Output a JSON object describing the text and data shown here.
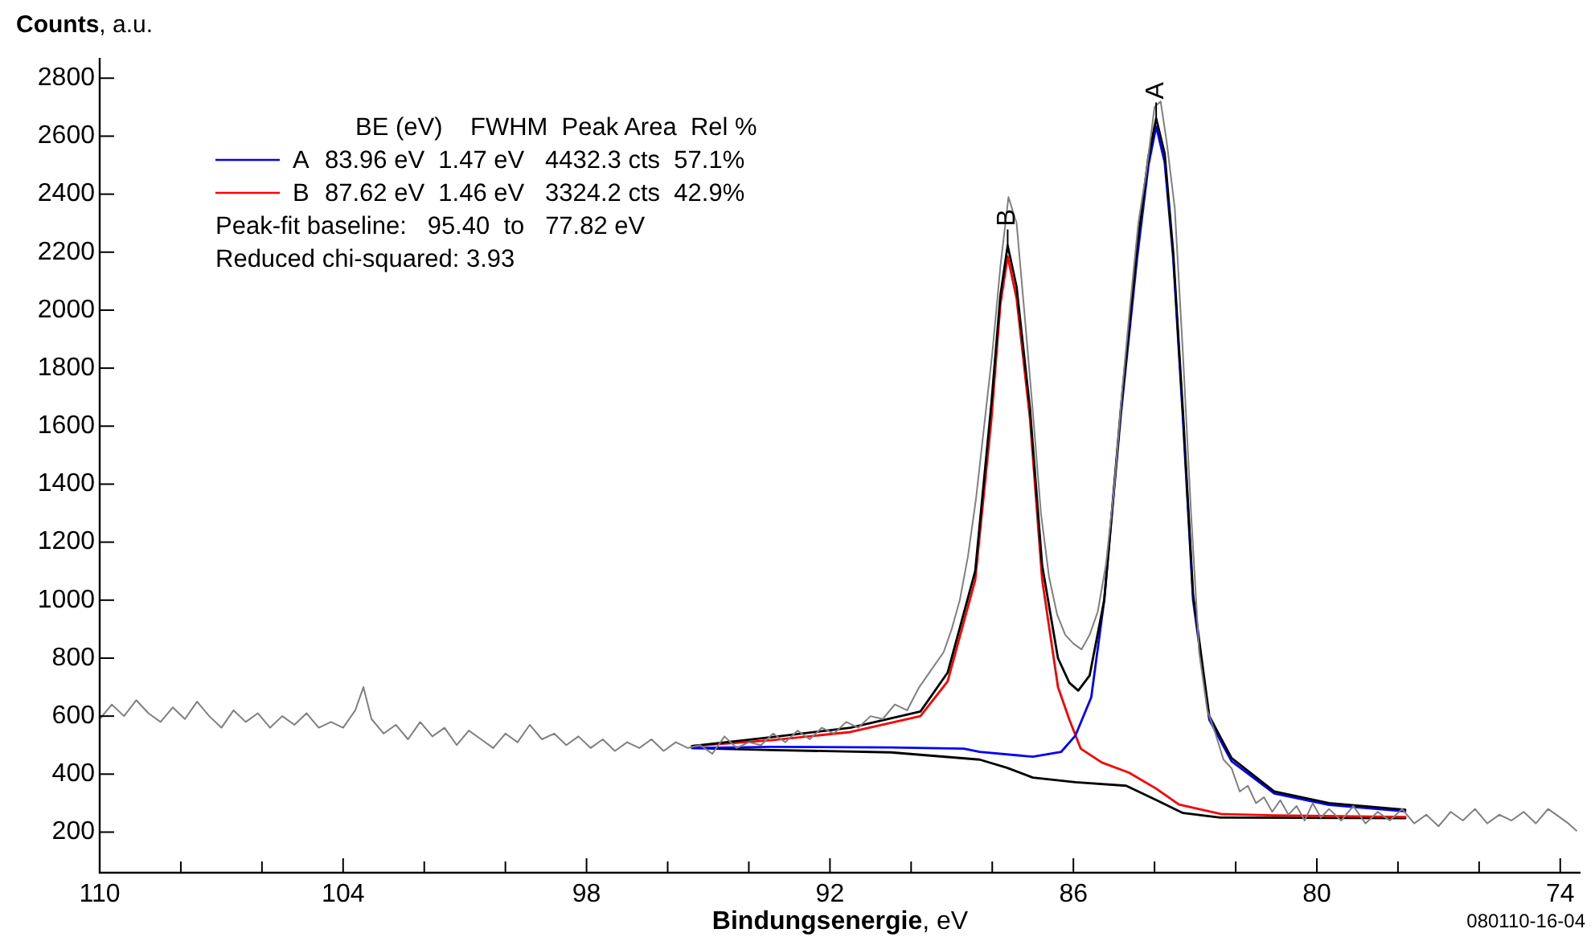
{
  "chart_data": {
    "type": "line",
    "ylabel": "Counts, a.u.",
    "xlabel": "Bindungsenergie, eV",
    "xlim": [
      110,
      73.5
    ],
    "xticks": [
      110,
      {
        "value": 108,
        "label": null
      },
      {
        "value": 106,
        "label": null
      },
      104,
      {
        "value": 102,
        "label": null
      },
      {
        "value": 100,
        "label": null
      },
      98,
      {
        "value": 96,
        "label": null
      },
      {
        "value": 94,
        "label": null
      },
      92,
      {
        "value": 90,
        "label": null
      },
      {
        "value": 88,
        "label": null
      },
      86,
      {
        "value": 84,
        "label": null
      },
      {
        "value": 82,
        "label": null
      },
      80,
      {
        "value": 78,
        "label": null
      },
      {
        "value": 76,
        "label": null
      },
      74
    ],
    "ylim": [
      60,
      2870
    ],
    "yticks": [
      200,
      400,
      600,
      800,
      1000,
      1200,
      1400,
      1600,
      1800,
      2000,
      2200,
      2400,
      2600,
      2800
    ],
    "legend": "top left",
    "marker": "none",
    "line_style": "solid",
    "series": [
      {
        "color": "#808080",
        "x": [
          110,
          109.7,
          109.4,
          109.1,
          108.8,
          108.5,
          108.2,
          107.9,
          107.6,
          107.3,
          107.0,
          106.7,
          106.4,
          106.1,
          105.8,
          105.5,
          105.2,
          104.9,
          104.6,
          104.3,
          104.0,
          103.7,
          103.5,
          103.3,
          103.0,
          102.7,
          102.4,
          102.1,
          101.8,
          101.5,
          101.2,
          100.9,
          100.6,
          100.3,
          100.0,
          99.7,
          99.4,
          99.1,
          98.8,
          98.5,
          98.2,
          97.9,
          97.6,
          97.3,
          97.0,
          96.7,
          96.4,
          96.1,
          95.8,
          95.5,
          95.2,
          94.9,
          94.6,
          94.3,
          94.0,
          93.7,
          93.4,
          93.1,
          92.8,
          92.5,
          92.2,
          91.9,
          91.6,
          91.3,
          91.0,
          90.7,
          90.4,
          90.1,
          89.8,
          89.5,
          89.2,
          89.0,
          88.8,
          88.6,
          88.4,
          88.2,
          88.0,
          87.8,
          87.6,
          87.4,
          87.2,
          87.0,
          86.8,
          86.6,
          86.4,
          86.2,
          86.0,
          85.8,
          85.6,
          85.4,
          85.2,
          85.0,
          84.8,
          84.6,
          84.4,
          84.2,
          84.0,
          83.85,
          83.7,
          83.5,
          83.3,
          83.1,
          82.9,
          82.7,
          82.5,
          82.3,
          82.1,
          81.9,
          81.7,
          81.5,
          81.3,
          81.1,
          80.9,
          80.7,
          80.5,
          80.3,
          80.1,
          79.9,
          79.7,
          79.4,
          79.1,
          78.8,
          78.5,
          78.2,
          77.9,
          77.6,
          77.3,
          77.0,
          76.7,
          76.4,
          76.1,
          75.8,
          75.5,
          75.2,
          74.9,
          74.6,
          74.3,
          74.0,
          73.8,
          73.6
        ],
        "values": [
          590,
          640,
          600,
          655,
          610,
          580,
          630,
          590,
          650,
          600,
          560,
          620,
          580,
          610,
          560,
          600,
          570,
          610,
          560,
          580,
          560,
          620,
          700,
          590,
          540,
          570,
          520,
          580,
          530,
          560,
          500,
          550,
          520,
          490,
          540,
          510,
          570,
          520,
          540,
          500,
          530,
          490,
          520,
          480,
          510,
          490,
          520,
          480,
          510,
          490,
          500,
          470,
          530,
          490,
          510,
          500,
          540,
          510,
          550,
          520,
          560,
          540,
          580,
          560,
          600,
          590,
          640,
          620,
          700,
          760,
          820,
          900,
          1000,
          1150,
          1350,
          1600,
          1850,
          2150,
          2390,
          2300,
          1980,
          1650,
          1300,
          1080,
          950,
          880,
          850,
          830,
          880,
          960,
          1120,
          1380,
          1720,
          2020,
          2300,
          2480,
          2700,
          2720,
          2580,
          2350,
          1850,
          1300,
          820,
          620,
          540,
          450,
          420,
          340,
          360,
          300,
          320,
          270,
          310,
          260,
          290,
          240,
          300,
          250,
          280,
          240,
          290,
          230,
          270,
          240,
          280,
          230,
          260,
          220,
          270,
          240,
          280,
          230,
          260,
          240,
          270,
          230,
          280,
          250,
          230,
          205
        ]
      },
      {
        "color": "#000000",
        "x": [
          95.4,
          93.45,
          91.5,
          89.77,
          89.1,
          88.42,
          88.02,
          87.8,
          87.62,
          87.4,
          87.07,
          86.77,
          86.38,
          86.1,
          85.88,
          85.6,
          85.24,
          84.83,
          84.43,
          84.15,
          83.96,
          83.75,
          83.54,
          83.3,
          83.05,
          82.65,
          82.1,
          81.05,
          79.7,
          77.82
        ],
        "values": [
          497,
          527,
          560,
          616,
          750,
          1100,
          1680,
          2050,
          2223,
          2080,
          1660,
          1120,
          800,
          715,
          688,
          740,
          1000,
          1660,
          2220,
          2530,
          2661,
          2540,
          2200,
          1650,
          1020,
          600,
          455,
          340,
          300,
          277
        ]
      },
      {
        "name": "A",
        "color": "#0000ff",
        "x": [
          95.4,
          93.45,
          90.5,
          88.7,
          88.31,
          87.0,
          86.3,
          85.95,
          85.56,
          85.24,
          84.83,
          84.43,
          84.15,
          83.96,
          83.75,
          83.54,
          83.3,
          83.05,
          82.65,
          82.1,
          81.05,
          79.7,
          77.82
        ],
        "values": [
          490,
          494,
          492,
          488,
          477,
          460,
          477,
          533,
          665,
          1000,
          1640,
          2180,
          2500,
          2633,
          2510,
          2180,
          1625,
          1000,
          588,
          444,
          333,
          294,
          272
        ]
      },
      {
        "name": "B",
        "color": "#ff0000",
        "x": [
          95.4,
          93.45,
          91.5,
          89.77,
          89.1,
          88.42,
          88.02,
          87.8,
          87.62,
          87.4,
          87.07,
          86.77,
          86.38,
          86.1,
          85.82,
          85.3,
          84.63,
          83.96,
          83.4,
          82.35,
          81.05,
          77.82
        ],
        "values": [
          497,
          517,
          545,
          600,
          720,
          1070,
          1625,
          2020,
          2185,
          2040,
          1625,
          1070,
          700,
          588,
          488,
          440,
          405,
          350,
          295,
          262,
          258,
          252
        ]
      },
      {
        "color": "#000000",
        "x": [
          95.4,
          93.45,
          90.5,
          88.31,
          87.64,
          87.0,
          85.95,
          84.7,
          83.96,
          83.3,
          82.38,
          77.82
        ],
        "values": [
          490,
          483,
          475,
          450,
          422,
          388,
          372,
          360,
          311,
          266,
          250,
          248
        ]
      }
    ],
    "annotations": [
      "BE (eV)    FWHM  Peak Area  Rel %",
      "83.96 eV  1.47 eV   4432.3 cts  57.1%",
      "87.62 eV  1.46 eV   3324.2 cts  42.9%",
      "Peak-fit baseline:   95.40  to   77.82 eV",
      "Reduced chi-squared: 3.93",
      "080110-16-04",
      {
        "text": "A",
        "x": 83.96,
        "y": 2661
      },
      {
        "text": "B",
        "x": 87.62,
        "y": 2223
      }
    ]
  }
}
